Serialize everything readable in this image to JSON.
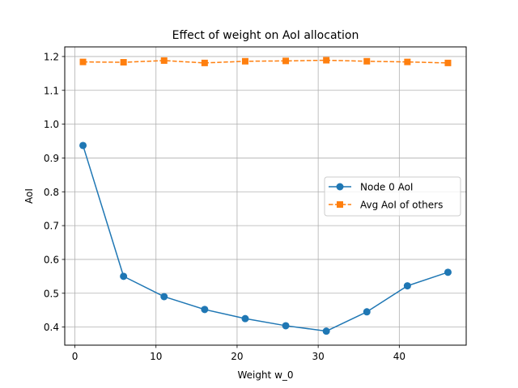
{
  "chart_data": {
    "type": "line",
    "title": "Effect of weight on AoI allocation",
    "xlabel": "Weight w_0",
    "ylabel": "AoI",
    "xlim": [
      -1.25,
      48.25
    ],
    "ylim": [
      0.3465,
      1.2285
    ],
    "xticks": [
      0,
      10,
      20,
      30,
      40
    ],
    "yticks": [
      0.4,
      0.5,
      0.6,
      0.7,
      0.8,
      0.9,
      1.0,
      1.1,
      1.2
    ],
    "ytick_labels": [
      "0.4",
      "0.5",
      "0.6",
      "0.7",
      "0.8",
      "0.9",
      "1.0",
      "1.1",
      "1.2"
    ],
    "grid": true,
    "legend_position": "center-right",
    "x": [
      1,
      6,
      11,
      16,
      21,
      26,
      31,
      36,
      41,
      46
    ],
    "series": [
      {
        "name": "Node 0 AoI",
        "color": "#1f77b4",
        "marker": "circle",
        "linestyle": "solid",
        "values": [
          0.937,
          0.55,
          0.49,
          0.452,
          0.425,
          0.404,
          0.388,
          0.445,
          0.522,
          0.562
        ]
      },
      {
        "name": "Avg AoI of others",
        "color": "#ff7f0e",
        "marker": "square",
        "linestyle": "dashed",
        "values": [
          1.184,
          1.183,
          1.188,
          1.181,
          1.186,
          1.187,
          1.189,
          1.186,
          1.184,
          1.181
        ]
      }
    ]
  }
}
